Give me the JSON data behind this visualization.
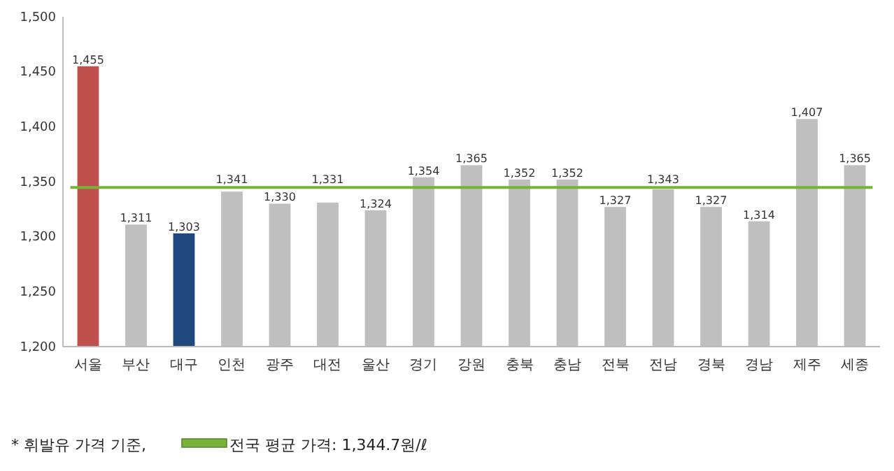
{
  "chart_data": {
    "type": "bar",
    "categories": [
      "서울",
      "부산",
      "대구",
      "인천",
      "광주",
      "대전",
      "울산",
      "경기",
      "강원",
      "충북",
      "충남",
      "전북",
      "전남",
      "경북",
      "경남",
      "제주",
      "세종"
    ],
    "values": [
      1455,
      1311,
      1303,
      1341,
      1330,
      1331,
      1324,
      1354,
      1365,
      1352,
      1352,
      1327,
      1343,
      1327,
      1314,
      1407,
      1365
    ],
    "colors": [
      "#c0504d",
      "#bfbfbf",
      "#1f497d",
      "#bfbfbf",
      "#bfbfbf",
      "#bfbfbf",
      "#bfbfbf",
      "#bfbfbf",
      "#bfbfbf",
      "#bfbfbf",
      "#bfbfbf",
      "#bfbfbf",
      "#bfbfbf",
      "#bfbfbf",
      "#bfbfbf",
      "#bfbfbf",
      "#bfbfbf"
    ],
    "value_labels": [
      "1,455",
      "1,311",
      "1,303",
      "1,341",
      "1,330",
      "1,331",
      "1,324",
      "1,354",
      "1,365",
      "1,352",
      "1,352",
      "1,327",
      "1,343",
      "1,327",
      "1,314",
      "1,407",
      "1,365"
    ],
    "ylim": [
      1200,
      1500
    ],
    "yticks": [
      {
        "value": 1200,
        "label": "1,200"
      },
      {
        "value": 1250,
        "label": "1,250"
      },
      {
        "value": 1300,
        "label": "1,300"
      },
      {
        "value": 1350,
        "label": "1,350"
      },
      {
        "value": 1400,
        "label": "1,400"
      },
      {
        "value": 1450,
        "label": "1,450"
      },
      {
        "value": 1500,
        "label": "1,500"
      }
    ],
    "ref_lines": [
      {
        "axis": "y",
        "value": 1344.7,
        "label": "전국 평균 가격: 1,344.7원/ℓ",
        "color": "#77b339"
      }
    ],
    "annotations": [
      "* 휘발유 가격 기준,"
    ],
    "grid": false,
    "legend": "bottom left"
  }
}
